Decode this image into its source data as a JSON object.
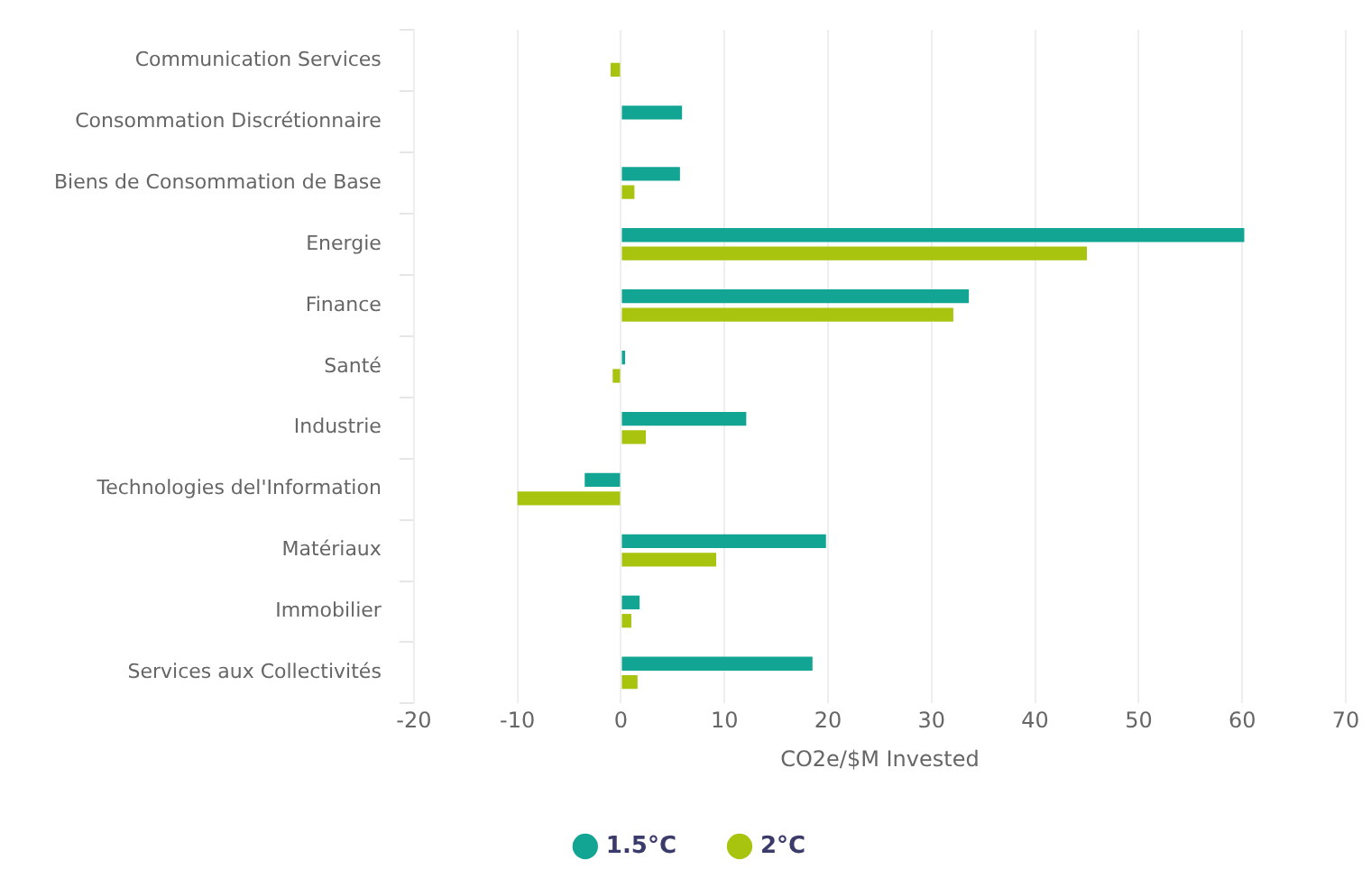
{
  "chart_data": {
    "type": "bar",
    "orientation": "horizontal",
    "xlabel": "CO2e/$M Invested",
    "categories": [
      "Communication Services",
      "Consommation Discrétionnaire",
      "Biens de Consommation de Base",
      "Energie",
      "Finance",
      "Santé",
      "Industrie",
      "Technologies del'Information",
      "Matériaux",
      "Immobilier",
      "Services aux Collectivités"
    ],
    "series": [
      {
        "name": "1.5°C",
        "color": "#12a594",
        "values": [
          0,
          5.9,
          5.7,
          60.2,
          33.6,
          0.4,
          12.1,
          -3.5,
          19.8,
          1.8,
          18.5
        ]
      },
      {
        "name": "2°C",
        "color": "#a9c40f",
        "values": [
          -1,
          null,
          1.3,
          45,
          32.1,
          -0.8,
          2.4,
          -10,
          9.2,
          1,
          1.6
        ]
      }
    ],
    "xlim": [
      -20,
      70
    ],
    "xticks": [
      -20,
      -10,
      0,
      10,
      20,
      30,
      40,
      50,
      60,
      70
    ],
    "grid": "x",
    "legend": "bottom"
  }
}
